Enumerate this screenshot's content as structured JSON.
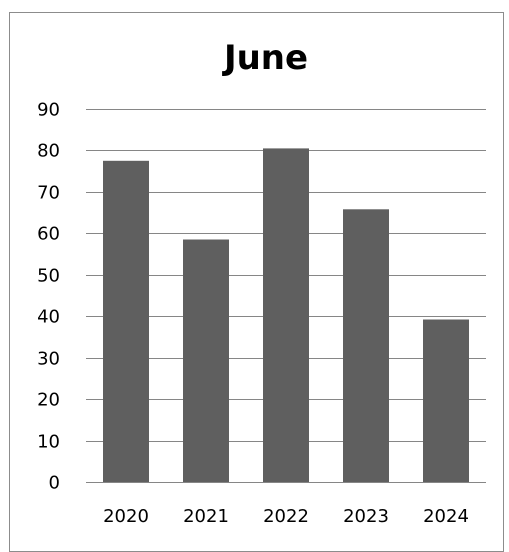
{
  "chart_data": {
    "type": "bar",
    "title": "June",
    "xlabel": "",
    "ylabel": "",
    "categories": [
      "2020",
      "2021",
      "2022",
      "2023",
      "2024"
    ],
    "values": [
      77.5,
      58.5,
      80.5,
      65.8,
      39.2
    ],
    "ylim": [
      0,
      90
    ],
    "yticks": [
      "0",
      "10",
      "20",
      "30",
      "40",
      "50",
      "60",
      "70",
      "80",
      "90"
    ],
    "grid": true,
    "legend": "none",
    "bar_color": "#5f5f5f",
    "grid_color": "#868686",
    "frame_color": "#8c8c8c"
  }
}
